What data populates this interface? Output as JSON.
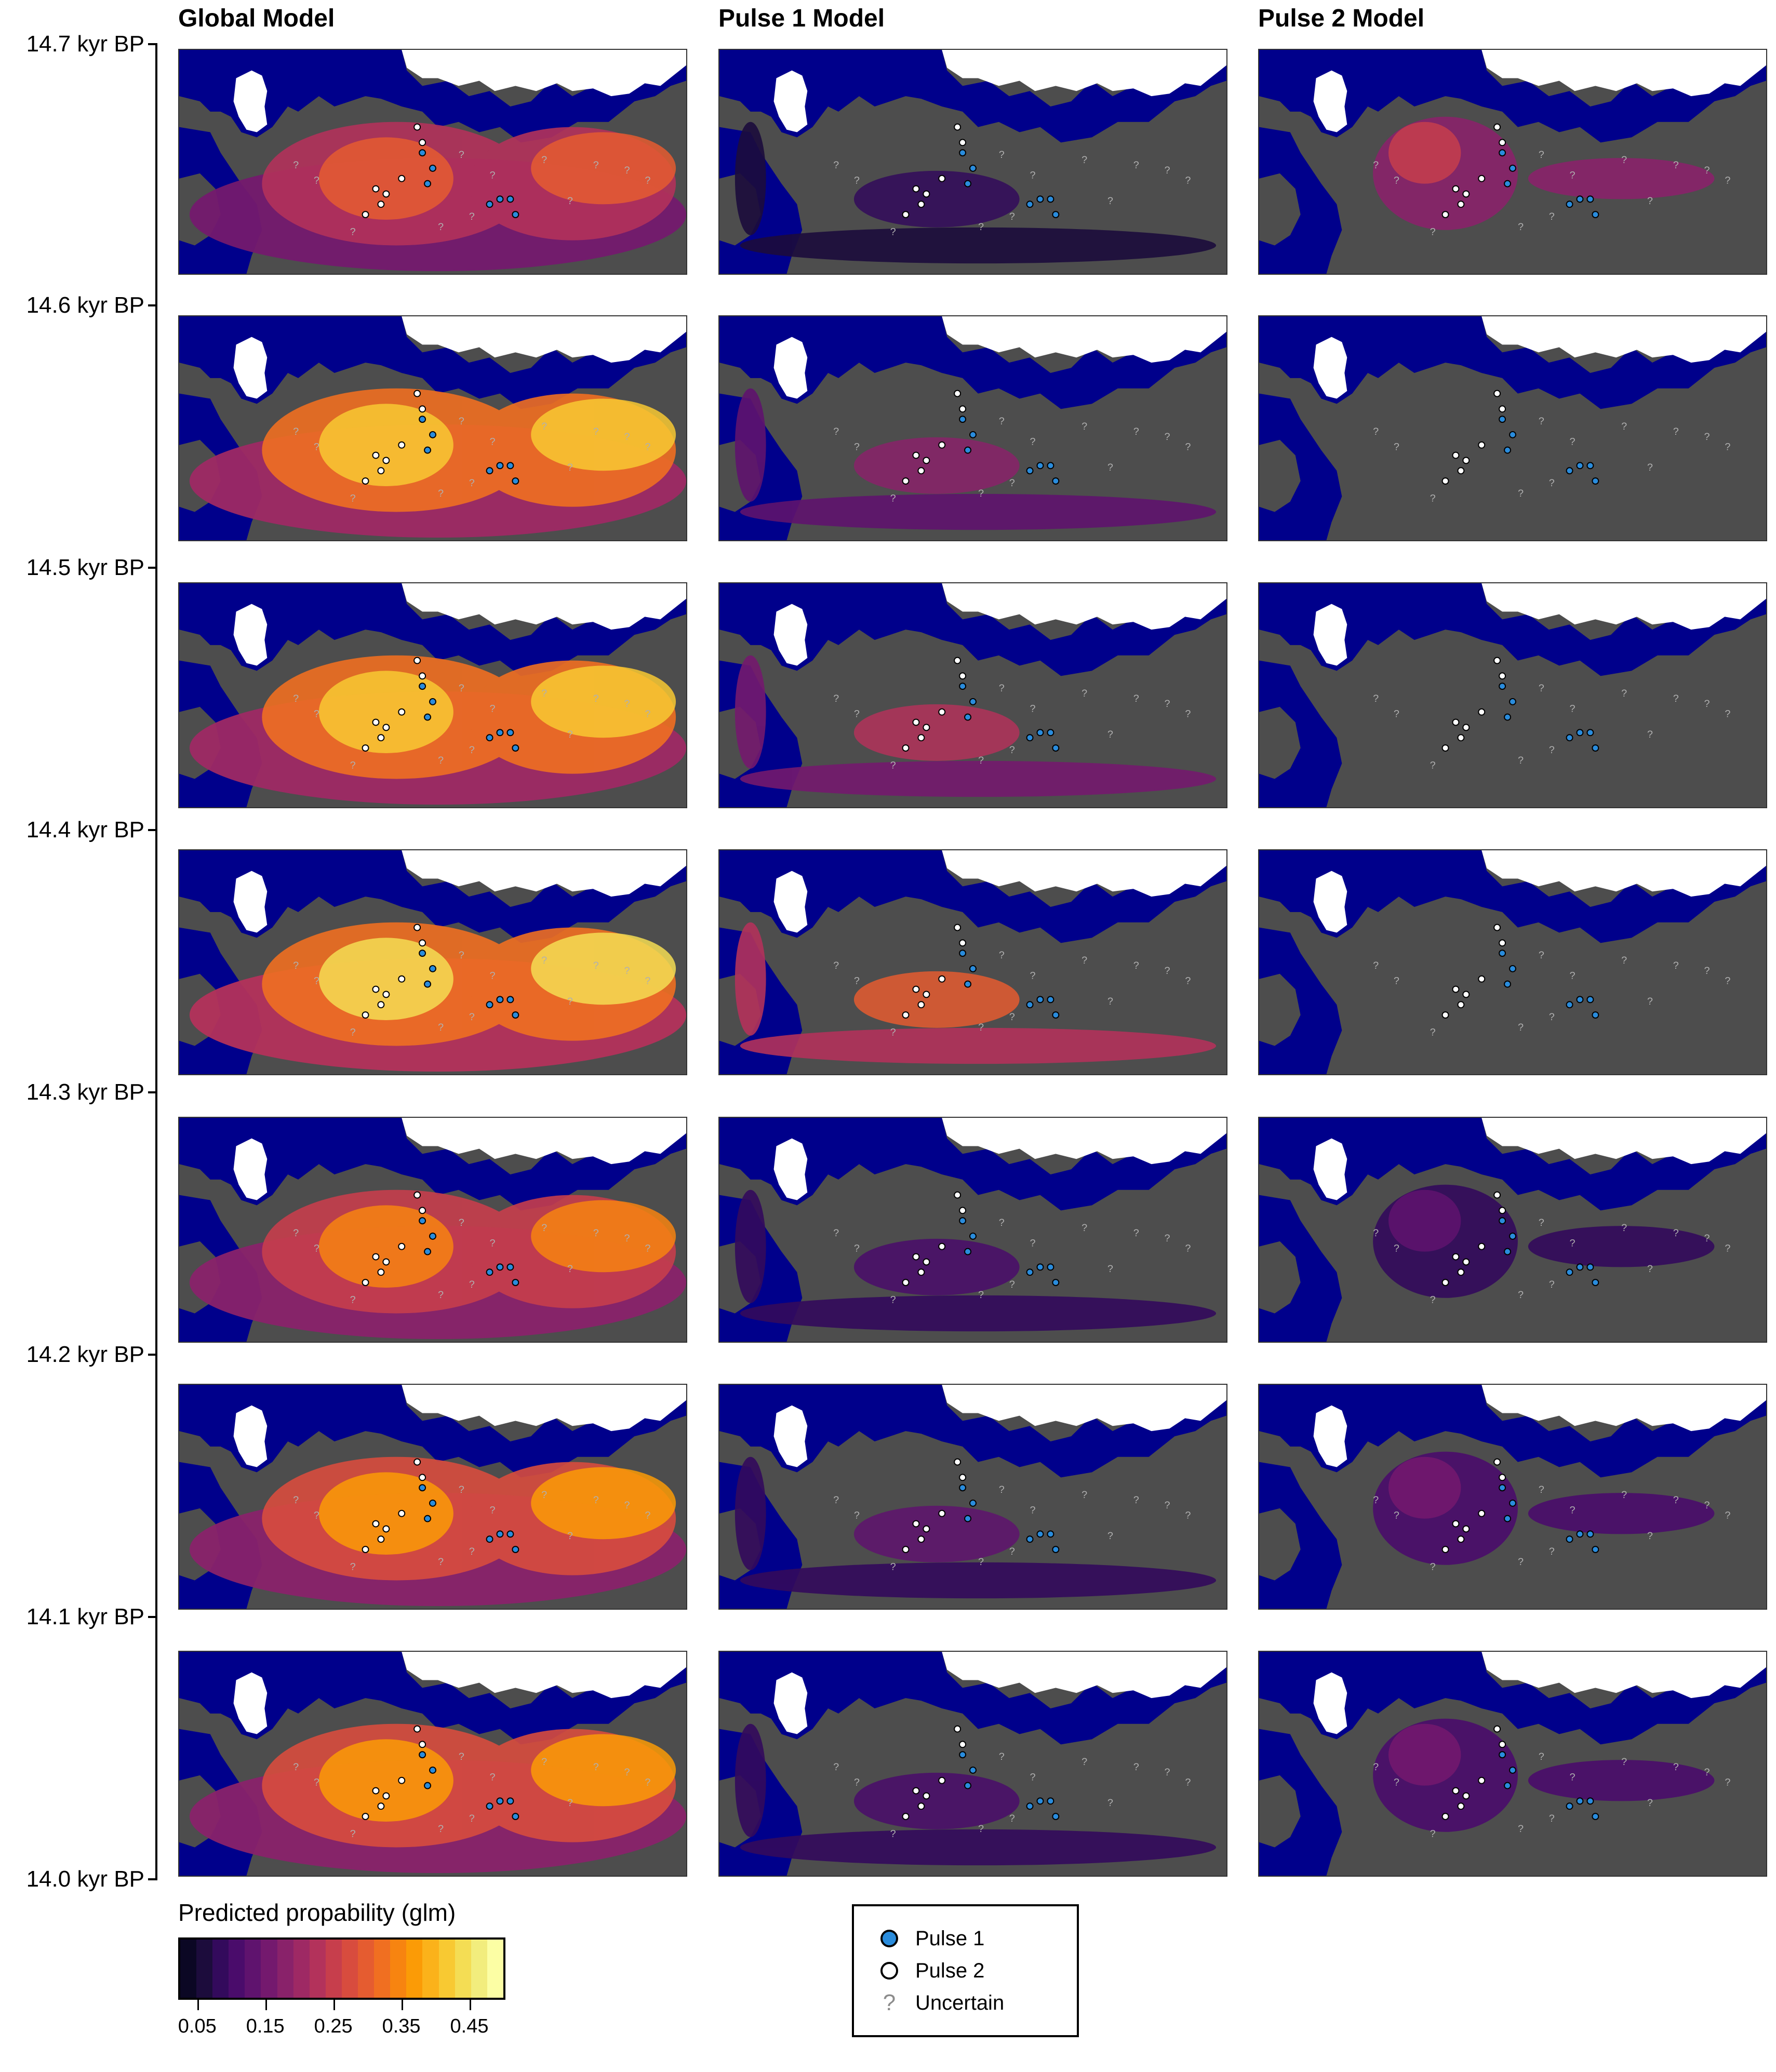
{
  "columns": [
    "Global Model",
    "Pulse 1 Model",
    "Pulse 2 Model"
  ],
  "time_labels": [
    "14.7 kyr BP",
    "14.6 kyr BP",
    "14.5 kyr BP",
    "14.4 kyr BP",
    "14.3 kyr BP",
    "14.2 kyr BP",
    "14.1 kyr BP",
    "14.0 kyr BP"
  ],
  "colorbar": {
    "title": "Predicted propability (glm)",
    "tick_labels": [
      "0.05",
      "0.15",
      "0.25",
      "0.35",
      "0.45"
    ],
    "range": [
      0.025,
      0.5
    ],
    "ticks": [
      0.05,
      0.15,
      0.25,
      0.35,
      0.45
    ],
    "colors": [
      "#0b0724",
      "#1c0c3c",
      "#330a5c",
      "#4a0c6b",
      "#5f136e",
      "#74196e",
      "#89226a",
      "#9e2964",
      "#b3325b",
      "#c73e4c",
      "#d84c3e",
      "#e55c30",
      "#f06f21",
      "#f78410",
      "#fb9b06",
      "#fbb21a",
      "#f8c932",
      "#f4dd54",
      "#f2ed7d",
      "#fcfea4"
    ]
  },
  "legend": {
    "items": [
      {
        "label": "Pulse 1",
        "symbol": "filled-circle",
        "color": "#2a8cdc"
      },
      {
        "label": "Pulse 2",
        "symbol": "open-circle",
        "color": "#ffffff"
      },
      {
        "label": "Uncertain",
        "symbol": "question-mark",
        "color": "#8c8c8c"
      }
    ]
  },
  "map_colors": {
    "ocean": "#00008b",
    "land": "#4d4d4d",
    "ice": "#ffffff"
  },
  "panels": [
    {
      "row": 0,
      "col": 0,
      "level": 0.3
    },
    {
      "row": 0,
      "col": 1,
      "level": 0.08
    },
    {
      "row": 0,
      "col": 2,
      "level": 0.25
    },
    {
      "row": 1,
      "col": 0,
      "level": 0.42
    },
    {
      "row": 1,
      "col": 1,
      "level": 0.18
    },
    {
      "row": 1,
      "col": 2,
      "level": 0.0
    },
    {
      "row": 2,
      "col": 0,
      "level": 0.42
    },
    {
      "row": 2,
      "col": 1,
      "level": 0.22
    },
    {
      "row": 2,
      "col": 2,
      "level": 0.0
    },
    {
      "row": 3,
      "col": 0,
      "level": 0.43
    },
    {
      "row": 3,
      "col": 1,
      "level": 0.3
    },
    {
      "row": 3,
      "col": 2,
      "level": 0.0
    },
    {
      "row": 4,
      "col": 0,
      "level": 0.35
    },
    {
      "row": 4,
      "col": 1,
      "level": 0.1
    },
    {
      "row": 4,
      "col": 2,
      "level": 0.12
    },
    {
      "row": 5,
      "col": 0,
      "level": 0.38
    },
    {
      "row": 5,
      "col": 1,
      "level": 0.12
    },
    {
      "row": 5,
      "col": 2,
      "level": 0.15
    },
    {
      "row": 6,
      "col": 0,
      "level": 0.38
    },
    {
      "row": 6,
      "col": 1,
      "level": 0.1
    },
    {
      "row": 6,
      "col": 2,
      "level": 0.15
    }
  ]
}
